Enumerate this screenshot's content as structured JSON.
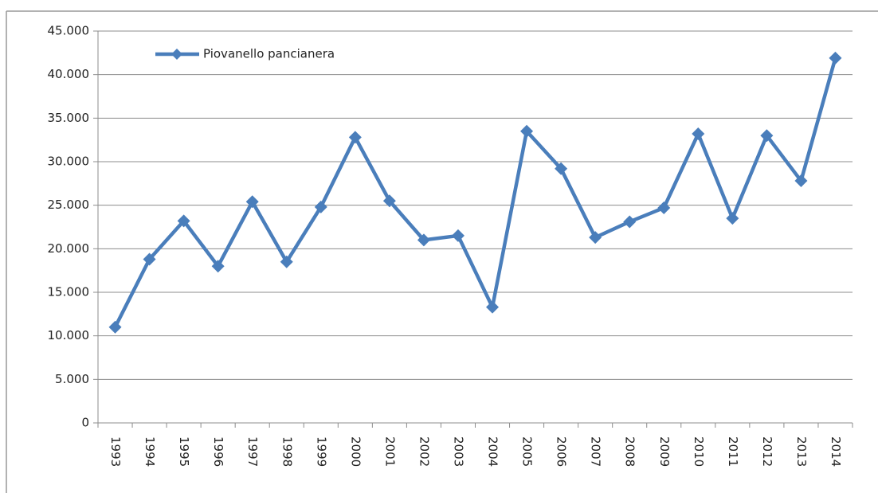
{
  "chart_data": {
    "type": "line",
    "categories": [
      "1993",
      "1994",
      "1995",
      "1996",
      "1997",
      "1998",
      "1999",
      "2000",
      "2001",
      "2002",
      "2003",
      "2004",
      "2005",
      "2006",
      "2007",
      "2008",
      "2009",
      "2010",
      "2011",
      "2012",
      "2013",
      "2014"
    ],
    "series": [
      {
        "name": "Piovanello pancianera",
        "color": "#4a7ebb",
        "values": [
          11000,
          18800,
          23200,
          18000,
          25400,
          18500,
          24800,
          32800,
          25500,
          21000,
          21500,
          13300,
          33500,
          29200,
          21300,
          23100,
          24700,
          33200,
          23500,
          33000,
          27800,
          41900
        ]
      }
    ],
    "ylim": [
      0,
      45000
    ],
    "yticks": [
      0,
      {
        "value": 5000,
        "label": "5.000"
      },
      {
        "value": 10000,
        "label": "10.000"
      },
      {
        "value": 15000,
        "label": "15.000"
      },
      {
        "value": 20000,
        "label": "20.000"
      },
      {
        "value": 25000,
        "label": "25.000"
      },
      {
        "value": 30000,
        "label": "30.000"
      },
      {
        "value": 35000,
        "label": "35.000"
      },
      {
        "value": 40000,
        "label": "40.000"
      },
      {
        "value": 45000,
        "label": "45.000"
      }
    ],
    "grid": true,
    "legend": "top-left"
  }
}
